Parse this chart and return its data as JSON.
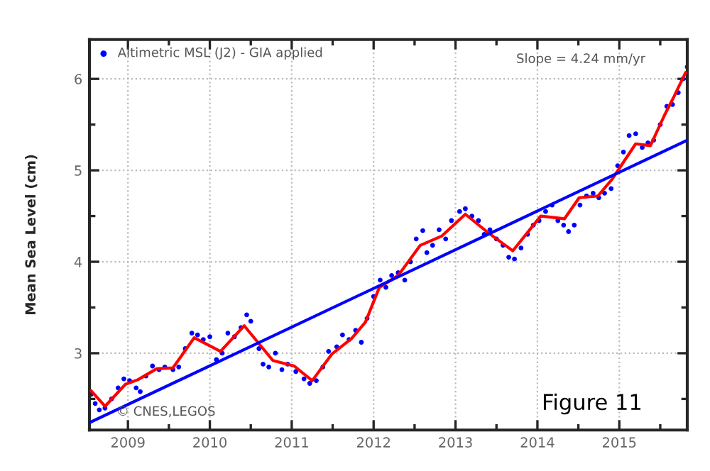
{
  "chart_data": {
    "type": "line",
    "ylabel": "Mean Sea Level (cm)",
    "xlim": [
      2008.53,
      2015.83
    ],
    "ylim": [
      2.16,
      6.43
    ],
    "xticks": [
      {
        "value": 2009,
        "label": "2009"
      },
      {
        "value": 2010,
        "label": "2010"
      },
      {
        "value": 2011,
        "label": "2011"
      },
      {
        "value": 2012,
        "label": "2012"
      },
      {
        "value": 2013,
        "label": "2013"
      },
      {
        "value": 2014,
        "label": "2014"
      },
      {
        "value": 2015,
        "label": "2015"
      },
      {
        "value": 2009.5,
        "label": null
      },
      {
        "value": 2010.5,
        "label": null
      },
      {
        "value": 2011.5,
        "label": null
      },
      {
        "value": 2012.5,
        "label": null
      },
      {
        "value": 2013.5,
        "label": null
      },
      {
        "value": 2014.5,
        "label": null
      },
      {
        "value": 2015.5,
        "label": null
      }
    ],
    "yticks": [
      3,
      4,
      5,
      6,
      {
        "value": 2.5,
        "label": null
      },
      {
        "value": 3.5,
        "label": null
      },
      {
        "value": 4.5,
        "label": null
      },
      {
        "value": 5.5,
        "label": null
      }
    ],
    "grid": true,
    "legend": "top left",
    "series": [
      {
        "name": "Altimetric MSL (J2) - GIA applied",
        "type": "scatter",
        "marker": "circle",
        "color": "#0000ff",
        "x": [
          2008.55,
          2008.6,
          2008.65,
          2008.72,
          2008.8,
          2008.88,
          2008.95,
          2009.02,
          2009.1,
          2009.15,
          2009.22,
          2009.3,
          2009.38,
          2009.45,
          2009.55,
          2009.62,
          2009.7,
          2009.78,
          2009.85,
          2009.92,
          2010.0,
          2010.08,
          2010.15,
          2010.22,
          2010.3,
          2010.38,
          2010.45,
          2010.5,
          2010.6,
          2010.65,
          2010.72,
          2010.8,
          2010.88,
          2010.95,
          2011.05,
          2011.15,
          2011.22,
          2011.3,
          2011.38,
          2011.45,
          2011.55,
          2011.62,
          2011.7,
          2011.78,
          2011.85,
          2011.92,
          2012.0,
          2012.08,
          2012.15,
          2012.22,
          2012.3,
          2012.38,
          2012.45,
          2012.52,
          2012.6,
          2012.65,
          2012.72,
          2012.8,
          2012.88,
          2012.95,
          2013.05,
          2013.12,
          2013.2,
          2013.28,
          2013.35,
          2013.42,
          2013.5,
          2013.58,
          2013.65,
          2013.72,
          2013.8,
          2013.88,
          2013.95,
          2014.02,
          2014.1,
          2014.18,
          2014.25,
          2014.32,
          2014.38,
          2014.45,
          2014.52,
          2014.6,
          2014.68,
          2014.75,
          2014.82,
          2014.9,
          2014.98,
          2015.05,
          2015.12,
          2015.2,
          2015.28,
          2015.35,
          2015.42,
          2015.5,
          2015.58,
          2015.65,
          2015.72,
          2015.78,
          2015.83
        ],
        "values": [
          2.55,
          2.45,
          2.38,
          2.4,
          2.5,
          2.62,
          2.72,
          2.7,
          2.62,
          2.58,
          2.75,
          2.86,
          2.82,
          2.85,
          2.82,
          2.85,
          3.05,
          3.22,
          3.2,
          3.15,
          3.18,
          2.93,
          3.0,
          3.22,
          3.18,
          3.28,
          3.42,
          3.35,
          3.05,
          2.88,
          2.85,
          3.0,
          2.82,
          2.88,
          2.8,
          2.72,
          2.67,
          2.7,
          2.85,
          3.02,
          3.07,
          3.2,
          3.15,
          3.25,
          3.12,
          3.38,
          3.62,
          3.8,
          3.72,
          3.85,
          3.88,
          3.8,
          4.0,
          4.25,
          4.34,
          4.1,
          4.18,
          4.35,
          4.25,
          4.45,
          4.55,
          4.58,
          4.5,
          4.45,
          4.3,
          4.35,
          4.25,
          4.18,
          4.05,
          4.03,
          4.15,
          4.3,
          4.4,
          4.45,
          4.55,
          4.62,
          4.45,
          4.4,
          4.33,
          4.4,
          4.62,
          4.72,
          4.75,
          4.7,
          4.75,
          4.8,
          5.05,
          5.2,
          5.38,
          5.4,
          5.25,
          5.3,
          5.33,
          5.5,
          5.7,
          5.72,
          5.85,
          6.0,
          6.13
        ]
      },
      {
        "color": "#ff0000",
        "x": [
          2008.55,
          2008.72,
          2008.97,
          2009.12,
          2009.35,
          2009.55,
          2009.81,
          2010.13,
          2010.42,
          2010.77,
          2011.03,
          2011.25,
          2011.49,
          2011.73,
          2011.9,
          2012.07,
          2012.3,
          2012.57,
          2012.83,
          2013.12,
          2013.41,
          2013.7,
          2014.04,
          2014.33,
          2014.51,
          2014.74,
          2014.91,
          2015.2,
          2015.38,
          2015.55,
          2015.67,
          2015.81
        ],
        "values": [
          2.59,
          2.42,
          2.66,
          2.71,
          2.83,
          2.84,
          3.17,
          3.02,
          3.3,
          2.92,
          2.86,
          2.7,
          2.99,
          3.16,
          3.34,
          3.72,
          3.85,
          4.18,
          4.28,
          4.52,
          4.31,
          4.12,
          4.5,
          4.47,
          4.7,
          4.72,
          4.9,
          5.29,
          5.27,
          5.6,
          5.81,
          6.07
        ]
      },
      {
        "color": "#0000ff",
        "x": [
          2008.53,
          2015.83
        ],
        "values": [
          2.24,
          5.33
        ]
      }
    ],
    "annotations": [
      "Slope = 4.24 mm/yr",
      "© CNES,LEGOS",
      "Figure 11"
    ]
  }
}
